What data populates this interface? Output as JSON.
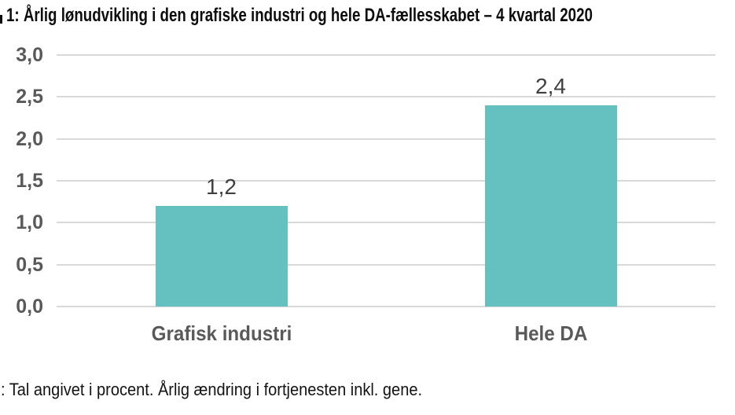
{
  "chart_data": {
    "type": "bar",
    "title": "1: Årlig lønudvikling i den grafiske industri og hele DA-fællesskabet – 4 kvartal 2020",
    "note": ": Tal angivet i procent. Årlig ændring i fortjenesten inkl. gene.",
    "categories": [
      "Grafisk industri",
      "Hele DA"
    ],
    "values": [
      1.2,
      2.4
    ],
    "value_labels": [
      "1,2",
      "2,4"
    ],
    "ylim": [
      0,
      3
    ],
    "yticks": [
      0,
      0.5,
      1,
      1.5,
      2,
      2.5,
      3
    ],
    "ytick_labels": [
      "0,0",
      "0,5",
      "1,0",
      "1,5",
      "2,0",
      "2,5",
      "3,0"
    ],
    "grid": true,
    "legend": false,
    "bar_color": "#64c1bf",
    "gridline_color": "#d9d9d9",
    "value_label_color": "#404040",
    "axis_label_color": "#595959",
    "title_color": "#0d0d0d",
    "background_color": "#ffffff"
  }
}
